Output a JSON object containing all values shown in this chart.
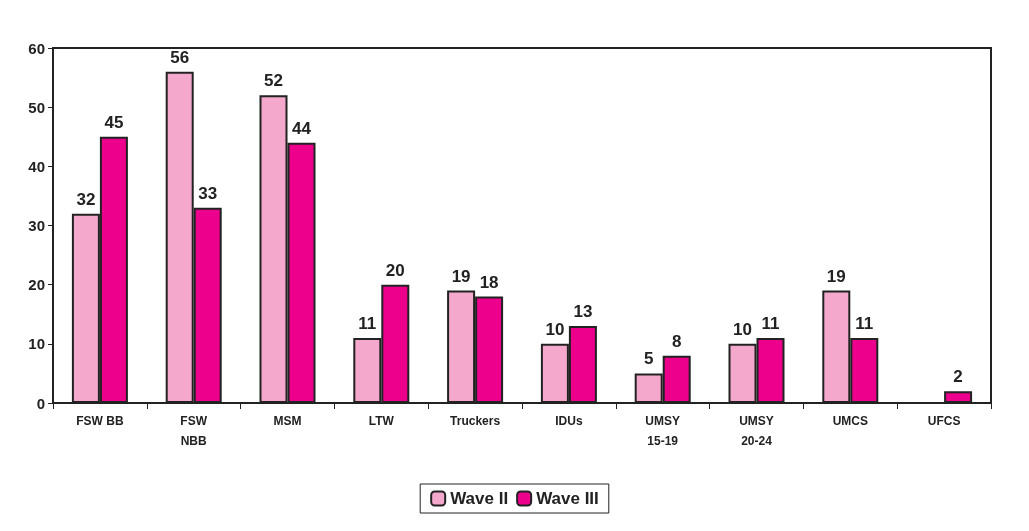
{
  "chart_data": {
    "type": "bar",
    "categories": [
      "FSW BB",
      "FSW\nNBB",
      "MSM",
      "LTW",
      "Truckers",
      "IDUs",
      "UMSY\n15-19",
      "UMSY\n20-24",
      "UMCS",
      "UFCS"
    ],
    "series": [
      {
        "name": "Wave II",
        "color": "#f4a9cc",
        "values": [
          32,
          56,
          52,
          11,
          19,
          10,
          5,
          10,
          19,
          null
        ]
      },
      {
        "name": "Wave III",
        "color": "#ec008c",
        "values": [
          45,
          33,
          44,
          20,
          18,
          13,
          8,
          11,
          11,
          2
        ]
      }
    ],
    "ylim": [
      0,
      60
    ],
    "yticks": [
      0,
      10,
      20,
      30,
      40,
      50,
      60
    ],
    "data_labels": true,
    "legend": "bottom",
    "grid": false
  }
}
